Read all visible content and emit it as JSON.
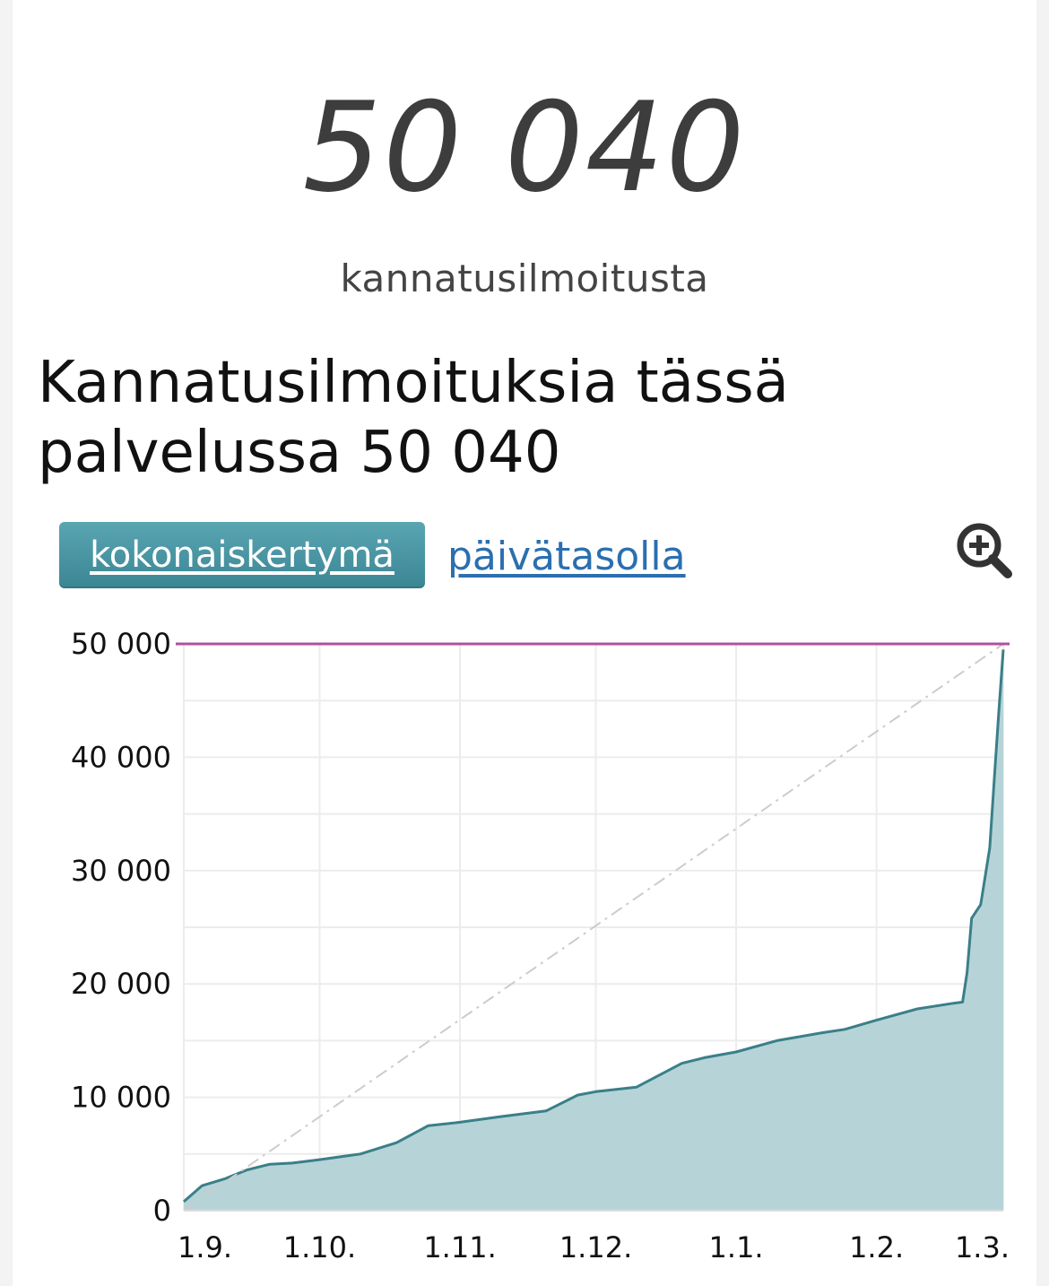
{
  "summary": {
    "count": "50 040",
    "count_label": "kannatusilmoitusta"
  },
  "section": {
    "title": "Kannatusilmoituksia tässä palvelussa 50 040"
  },
  "tabs": [
    {
      "label": "kokonaiskertymä",
      "active": true
    },
    {
      "label": "päivätasolla",
      "active": false
    }
  ],
  "icons": {
    "zoom": "zoom-in-icon"
  },
  "colors": {
    "line": "#3a7f89",
    "area": "#b6d4d8",
    "target_line": "#b0509c",
    "trend_line": "#cccccc",
    "tab_active": "#4a95a3",
    "link": "#2b6fb0"
  },
  "chart_data": {
    "type": "area",
    "title": "",
    "xlabel": "",
    "ylabel": "",
    "x_ticks": [
      "1.9.",
      "1.10.",
      "1.11.",
      "1.12.",
      "1.1.",
      "1.2.",
      "1.3."
    ],
    "y_ticks": [
      "0",
      "10 000",
      "20 000",
      "30 000",
      "40 000",
      "50 000"
    ],
    "ylim": [
      0,
      50000
    ],
    "grid": true,
    "reference_lines": [
      {
        "type": "horizontal",
        "value": 50000
      },
      {
        "type": "diagonal",
        "from": [
          "1.9.",
          0
        ],
        "to": [
          "1.3.",
          50000
        ],
        "style": "dash-dot"
      }
    ],
    "series": [
      {
        "x": [
          "1.9.",
          "5.9.",
          "10.9.",
          "15.9.",
          "20.9.",
          "25.9.",
          "1.10.",
          "10.10.",
          "18.10.",
          "25.10.",
          "1.11.",
          "10.11.",
          "20.11.",
          "27.11.",
          "1.12.",
          "10.12.",
          "20.12.",
          "25.12.",
          "1.1.",
          "10.1.",
          "20.1.",
          "25.1.",
          "1.2.",
          "10.2.",
          "18.2.",
          "20.2.",
          "21.2.",
          "22.2.",
          "24.2.",
          "26.2.",
          "27.2.",
          "28.2.",
          "1.3."
        ],
        "values": [
          800,
          2200,
          2800,
          3600,
          4100,
          4200,
          4500,
          5000,
          6000,
          7500,
          7800,
          8300,
          8800,
          10200,
          10500,
          10900,
          13000,
          13500,
          14000,
          15000,
          15700,
          16000,
          16800,
          17800,
          18300,
          18400,
          21000,
          25800,
          27000,
          32000,
          38000,
          44000,
          49500
        ]
      }
    ]
  }
}
